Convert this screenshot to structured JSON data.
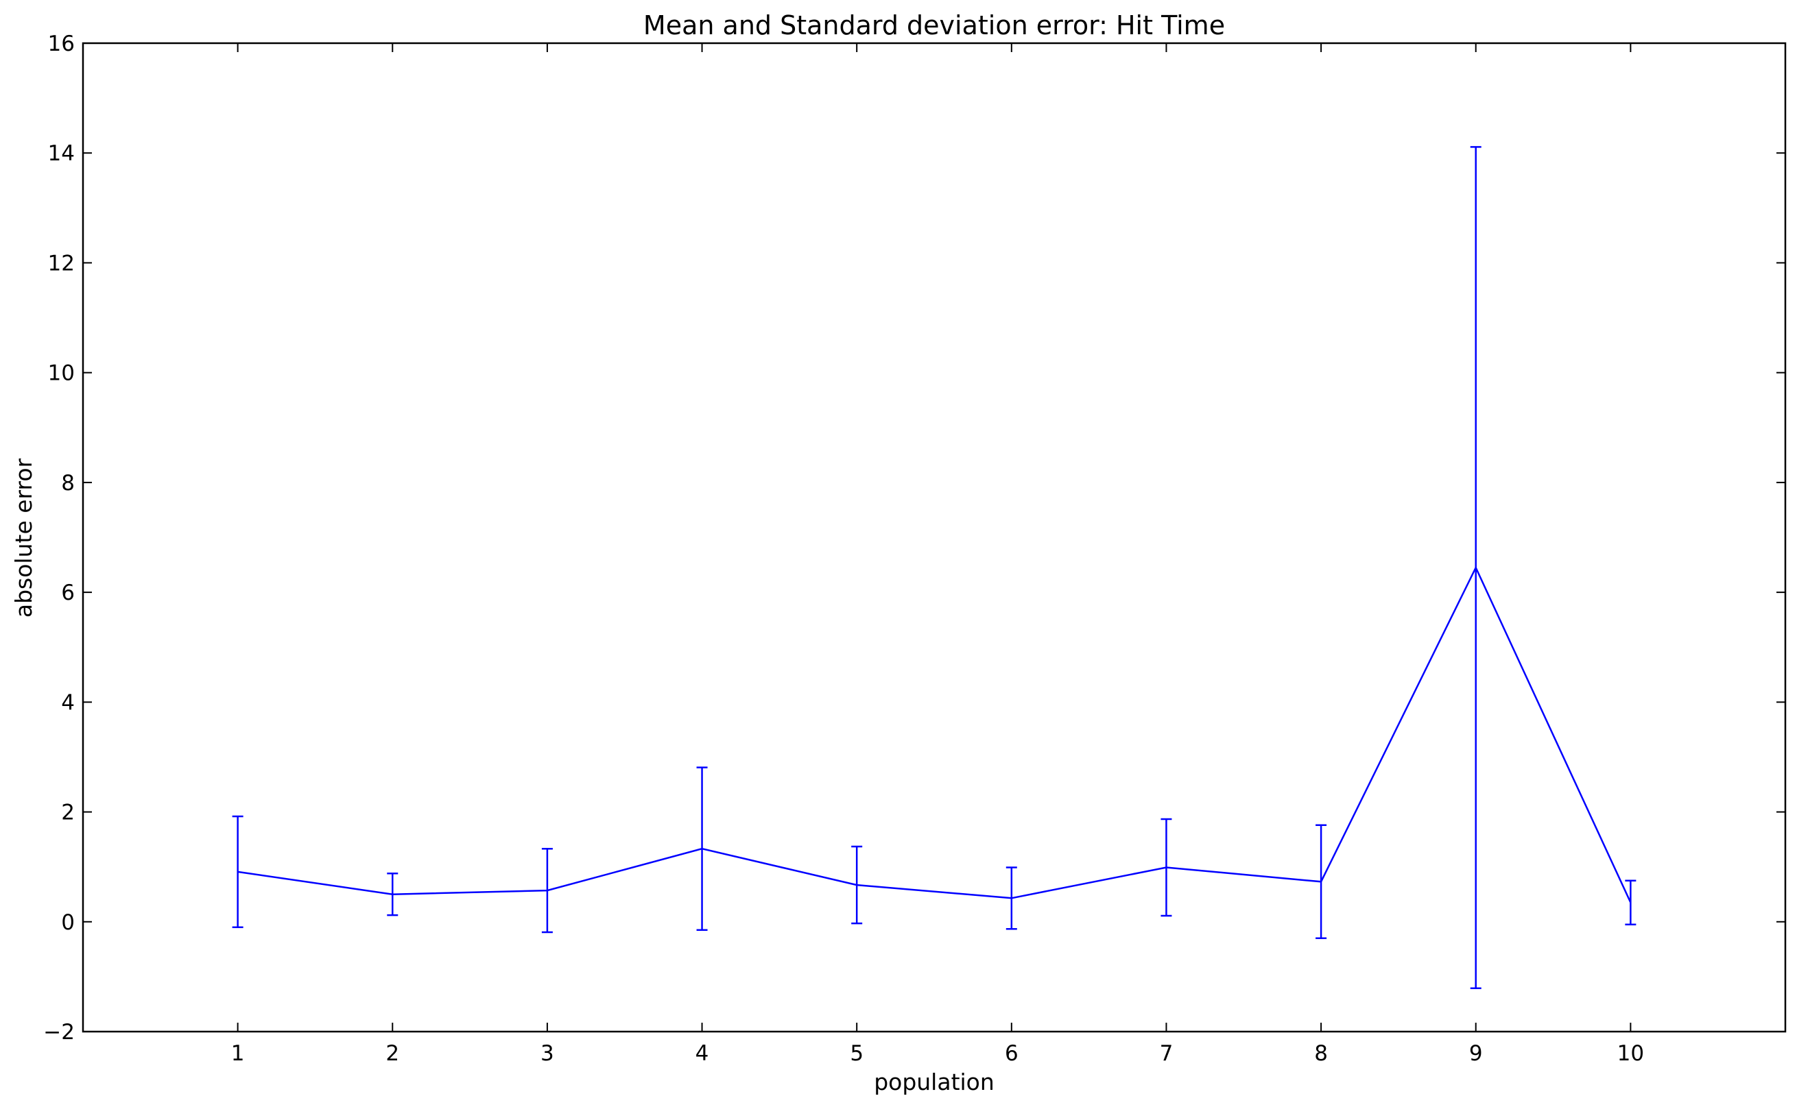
{
  "chart_data": {
    "type": "line",
    "title": "Mean and Standard deviation error: Hit Time",
    "xlabel": "population",
    "ylabel": "absolute error",
    "xlim": [
      0,
      11
    ],
    "ylim": [
      -2,
      16
    ],
    "xticks": [
      "1",
      "2",
      "3",
      "4",
      "5",
      "6",
      "7",
      "8",
      "9",
      "10"
    ],
    "yticks": [
      "−2",
      "0",
      "2",
      "4",
      "6",
      "8",
      "10",
      "12",
      "14",
      "16"
    ],
    "grid": false,
    "legend": "none",
    "series": [
      {
        "x": [
          1,
          2,
          3,
          4,
          5,
          6,
          7,
          8,
          9,
          10
        ],
        "mean": [
          0.91,
          0.5,
          0.57,
          1.33,
          0.67,
          0.43,
          0.99,
          0.73,
          6.45,
          0.35
        ],
        "std": [
          1.01,
          0.38,
          0.76,
          1.48,
          0.7,
          0.56,
          0.88,
          1.03,
          7.66,
          0.4
        ],
        "color": "#0000ff"
      }
    ]
  }
}
